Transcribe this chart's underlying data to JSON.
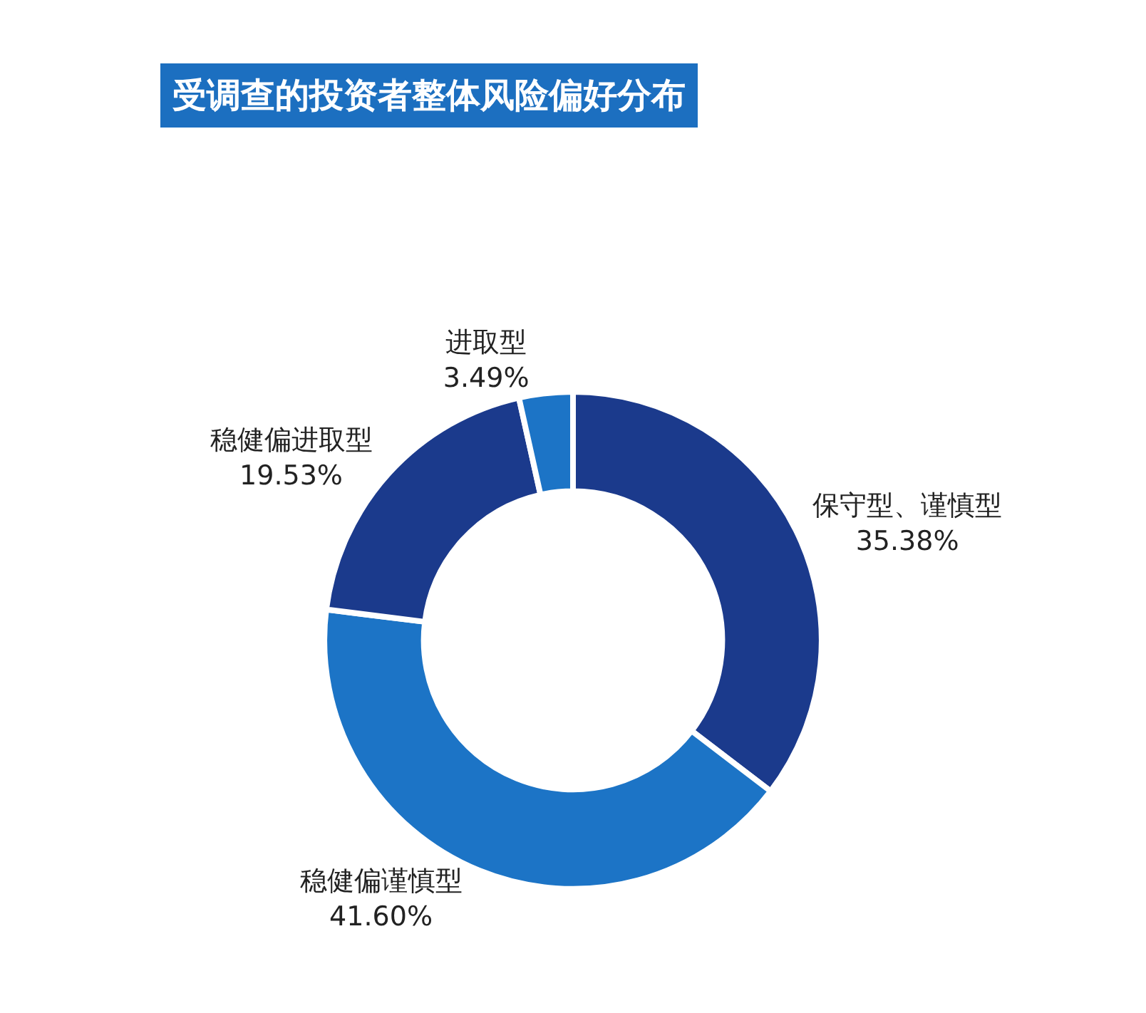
{
  "chart_data": {
    "type": "donut",
    "title": "受调查的投资者整体风险偏好分布",
    "categories": [
      "保守型、谨慎型",
      "稳健偏谨慎型",
      "稳健偏进取型",
      "进取型"
    ],
    "values": [
      35.38,
      41.6,
      19.53,
      3.49
    ],
    "value_labels": [
      "35.38%",
      "41.60%",
      "19.53%",
      "3.49%"
    ],
    "colors": [
      "#1b3a8c",
      "#1c74c6",
      "#1b3a8c",
      "#1c74c6"
    ],
    "legend": false
  }
}
